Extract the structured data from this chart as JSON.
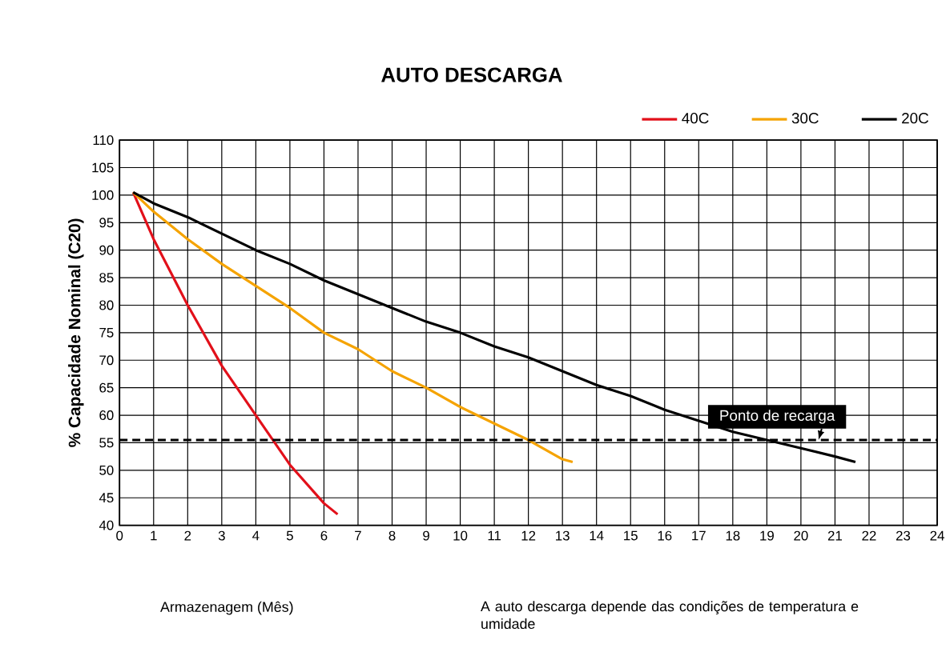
{
  "chart_data": {
    "type": "line",
    "title": "AUTO DESCARGA",
    "xlabel": "Armazenagem (Mês)",
    "ylabel": "% Capacidade Nominal (C20)",
    "annotations": [
      "A auto descarga depende das condições de temperatura e umidade"
    ],
    "xlim": [
      0,
      24
    ],
    "ylim": [
      40,
      110
    ],
    "xticks": [
      0,
      1,
      2,
      3,
      4,
      5,
      6,
      7,
      8,
      9,
      10,
      11,
      12,
      13,
      14,
      15,
      16,
      17,
      18,
      19,
      20,
      21,
      22,
      23,
      24
    ],
    "yticks": [
      40,
      45,
      50,
      55,
      60,
      65,
      70,
      75,
      80,
      85,
      90,
      95,
      100,
      105,
      110
    ],
    "grid": true,
    "legend": "top right",
    "ref_lines": [
      {
        "axis": "y",
        "value": 55.5,
        "label": "Ponto de recarga",
        "color": "#000000",
        "line_style": "dashed"
      }
    ],
    "series": [
      {
        "name": "40C",
        "color": "#e2101a",
        "x": [
          0.4,
          1,
          2,
          3,
          4,
          4.5,
          5,
          6,
          6.4
        ],
        "values": [
          100.5,
          92,
          80,
          69,
          60,
          55.5,
          51,
          44,
          42
        ]
      },
      {
        "name": "30C",
        "color": "#f5a300",
        "x": [
          0.4,
          1,
          2,
          3,
          4,
          5,
          6,
          7,
          8,
          9,
          10,
          11,
          12,
          13,
          13.3
        ],
        "values": [
          100.5,
          97,
          92,
          87.5,
          83.5,
          79.5,
          75,
          72,
          68,
          65,
          61.5,
          58.5,
          55.5,
          52,
          51.5
        ]
      },
      {
        "name": "20C",
        "color": "#000000",
        "x": [
          0.4,
          1,
          2,
          3,
          4,
          5,
          6,
          7,
          8,
          9,
          10,
          11,
          12,
          13,
          14,
          15,
          16,
          17,
          18,
          19,
          20,
          21,
          21.6
        ],
        "values": [
          100.5,
          98.5,
          96,
          93,
          90,
          87.5,
          84.5,
          82,
          79.5,
          77,
          75,
          72.5,
          70.5,
          68,
          65.5,
          63.5,
          61,
          59,
          57,
          55.5,
          54,
          52.5,
          51.5
        ]
      }
    ]
  }
}
